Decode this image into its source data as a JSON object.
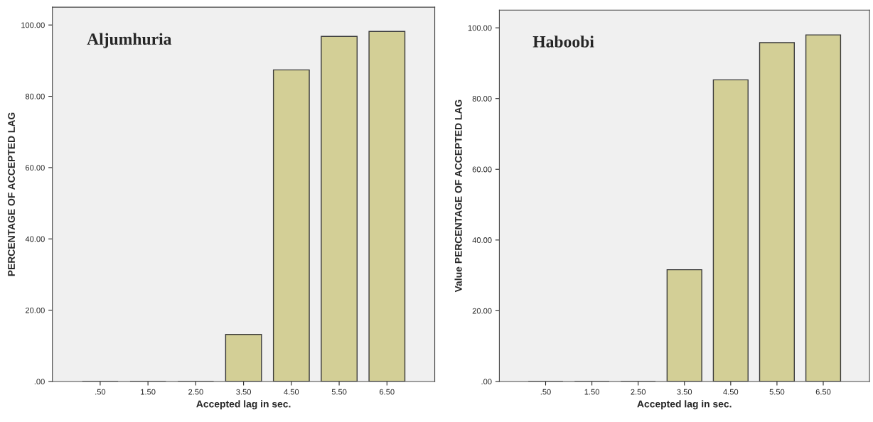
{
  "chart_data": [
    {
      "type": "bar",
      "title": "Aljumhuria",
      "xlabel": "Accepted lag in sec.",
      "ylabel": "PERCENTAGE OF ACCEPTED LAG",
      "categories": [
        ".50",
        "1.50",
        "2.50",
        "3.50",
        "4.50",
        "5.50",
        "6.50"
      ],
      "values": [
        0,
        0,
        0,
        13.2,
        87.4,
        96.8,
        98.2
      ],
      "color": "#d3cf96",
      "ylim": [
        0,
        105
      ],
      "yticks": [
        {
          "value": 0,
          "label": ".00"
        },
        {
          "value": 20,
          "label": "20.00"
        },
        {
          "value": 40,
          "label": "40.00"
        },
        {
          "value": 60,
          "label": "60.00"
        },
        {
          "value": 80,
          "label": "80.00"
        },
        {
          "value": 100,
          "label": "100.00"
        }
      ],
      "grid": false
    },
    {
      "type": "bar",
      "title": "Haboobi",
      "xlabel": "Accepted lag in sec.",
      "ylabel": "Value PERCENTAGE OF ACCEPTED LAG",
      "categories": [
        ".50",
        "1.50",
        "2.50",
        "3.50",
        "4.50",
        "5.50",
        "6.50"
      ],
      "values": [
        0,
        0,
        0,
        31.6,
        85.3,
        95.8,
        98.0
      ],
      "color": "#d3cf96",
      "ylim": [
        0,
        105
      ],
      "yticks": [
        {
          "value": 0,
          "label": ".00"
        },
        {
          "value": 20,
          "label": "20.00"
        },
        {
          "value": 40,
          "label": "40.00"
        },
        {
          "value": 60,
          "label": "60.00"
        },
        {
          "value": 80,
          "label": "80.00"
        },
        {
          "value": 100,
          "label": "100.00"
        }
      ],
      "grid": false
    }
  ]
}
